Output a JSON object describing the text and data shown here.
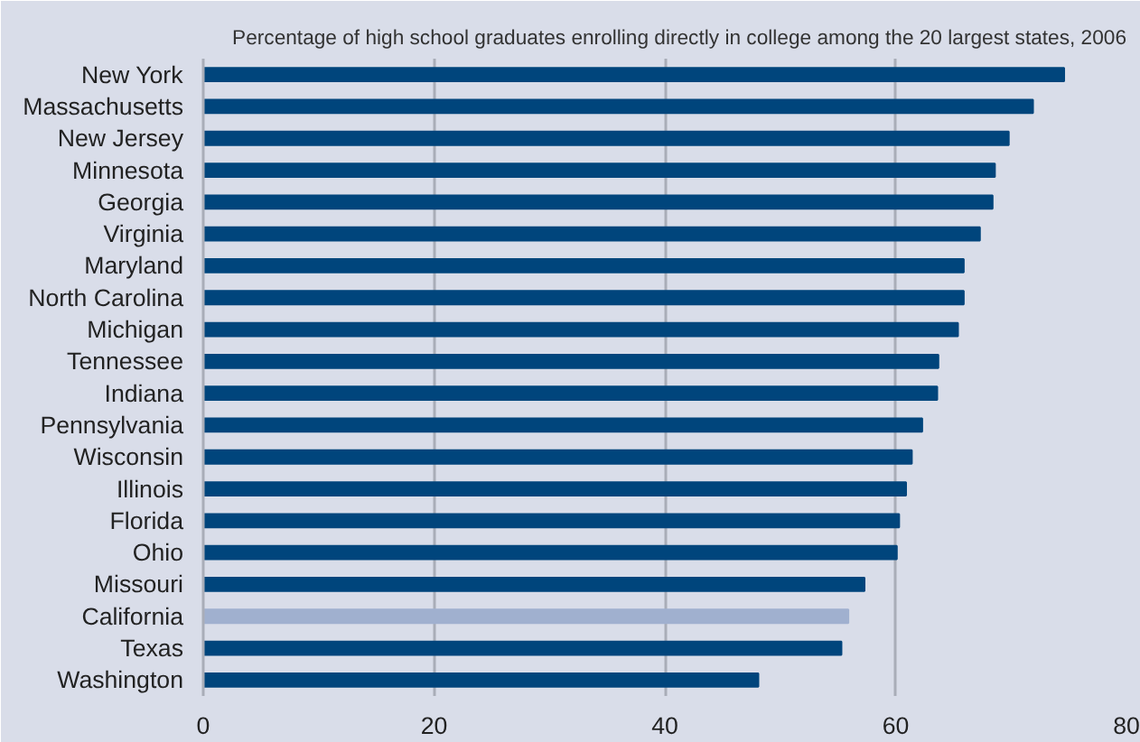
{
  "chart_data": {
    "type": "bar",
    "orientation": "horizontal",
    "title": "Percentage of high school graduates enrolling directly in college among the 20 largest states, 2006",
    "categories": [
      "New York",
      "Massachusetts",
      "New Jersey",
      "Minnesota",
      "Georgia",
      "Virginia",
      "Maryland",
      "North Carolina",
      "Michigan",
      "Tennessee",
      "Indiana",
      "Pennsylvania",
      "Wisconsin",
      "Illinois",
      "Florida",
      "Ohio",
      "Missouri",
      "California",
      "Texas",
      "Washington"
    ],
    "values": [
      74.6,
      71.9,
      69.8,
      68.6,
      68.4,
      67.3,
      65.9,
      65.9,
      65.4,
      63.7,
      63.6,
      62.3,
      61.4,
      60.9,
      60.3,
      60.1,
      57.3,
      55.9,
      55.3,
      48.1
    ],
    "colors": [
      "#00457c",
      "#00457c",
      "#00457c",
      "#00457c",
      "#00457c",
      "#00457c",
      "#00457c",
      "#00457c",
      "#00457c",
      "#00457c",
      "#00457c",
      "#00457c",
      "#00457c",
      "#00457c",
      "#00457c",
      "#00457c",
      "#00457c",
      "#a0b0cf",
      "#00457c",
      "#00457c"
    ],
    "xlim": [
      0,
      80
    ],
    "xticks": [
      0,
      20,
      40,
      60,
      80
    ],
    "grid": "x"
  }
}
